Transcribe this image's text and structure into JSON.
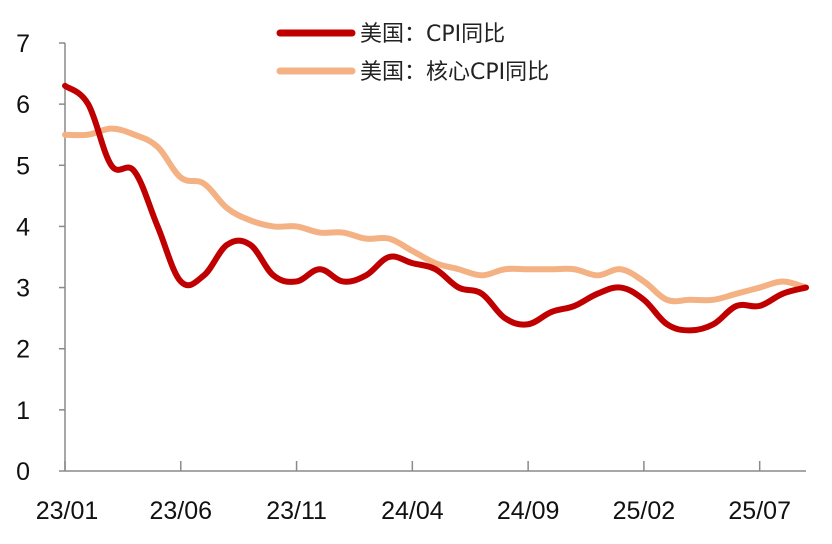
{
  "chart_data": {
    "type": "line",
    "title": "",
    "xlabel": "",
    "ylabel": "",
    "ylim": [
      0,
      7
    ],
    "yticks": [
      "0",
      "1",
      "2",
      "3",
      "4",
      "5",
      "6",
      "7"
    ],
    "x_categories": [
      "23/01",
      "23/02",
      "23/03",
      "23/04",
      "23/05",
      "23/06",
      "23/07",
      "23/08",
      "23/09",
      "23/10",
      "23/11",
      "23/12",
      "24/01",
      "24/02",
      "24/03",
      "24/04",
      "24/05",
      "24/06",
      "24/07",
      "24/08",
      "24/09",
      "24/10",
      "24/11",
      "24/12",
      "25/01",
      "25/02",
      "25/03",
      "25/04",
      "25/05",
      "25/06",
      "25/07",
      "25/08",
      "25/09"
    ],
    "xtick_labels": [
      "23/01",
      "23/06",
      "23/11",
      "24/04",
      "24/09",
      "25/02",
      "25/07"
    ],
    "legend_position": "top-center",
    "grid": false,
    "series": [
      {
        "name": "美国：CPI同比",
        "color": "#c00000",
        "values": [
          6.3,
          6.0,
          5.0,
          4.9,
          4.0,
          3.1,
          3.2,
          3.7,
          3.7,
          3.2,
          3.1,
          3.3,
          3.1,
          3.2,
          3.5,
          3.4,
          3.3,
          3.0,
          2.9,
          2.5,
          2.4,
          2.6,
          2.7,
          2.9,
          3.0,
          2.8,
          2.4,
          2.3,
          2.4,
          2.7,
          2.7,
          2.9,
          3.0
        ]
      },
      {
        "name": "美国：核心CPI同比",
        "color": "#f4b183",
        "values": [
          5.5,
          5.5,
          5.6,
          5.5,
          5.3,
          4.8,
          4.7,
          4.3,
          4.1,
          4.0,
          4.0,
          3.9,
          3.9,
          3.8,
          3.8,
          3.6,
          3.4,
          3.3,
          3.2,
          3.3,
          3.3,
          3.3,
          3.3,
          3.2,
          3.3,
          3.1,
          2.8,
          2.8,
          2.8,
          2.9,
          3.0,
          3.1,
          3.0
        ]
      }
    ]
  }
}
